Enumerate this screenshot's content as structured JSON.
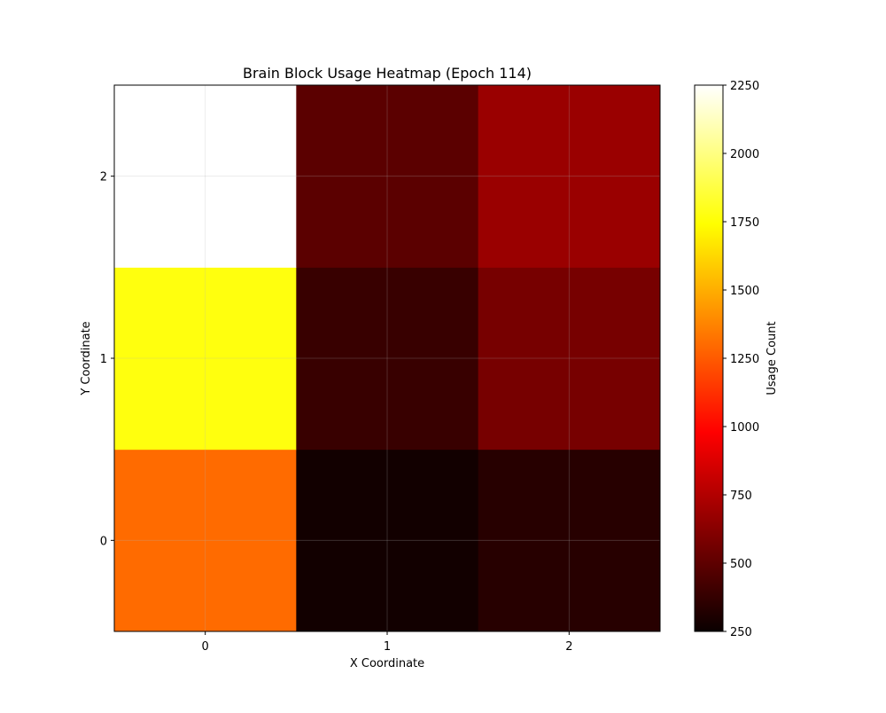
{
  "chart_data": {
    "type": "heatmap",
    "title": "Brain Block Usage Heatmap (Epoch 114)",
    "xlabel": "X Coordinate",
    "ylabel": "Y Coordinate",
    "x_categories": [
      "0",
      "1",
      "2"
    ],
    "y_categories": [
      "0",
      "1",
      "2"
    ],
    "values": [
      [
        1300,
        270,
        330
      ],
      [
        1770,
        380,
        560
      ],
      [
        2250,
        480,
        660
      ]
    ],
    "values_note_rows": "rows indexed by Y coordinate 0..2, columns by X coordinate 0..2",
    "colormap": "hot",
    "colorbar": {
      "label": "Usage Count",
      "range": [
        250,
        2250
      ],
      "ticks": [
        250,
        500,
        750,
        1000,
        1250,
        1500,
        1750,
        2000,
        2250
      ]
    },
    "grid": true
  }
}
